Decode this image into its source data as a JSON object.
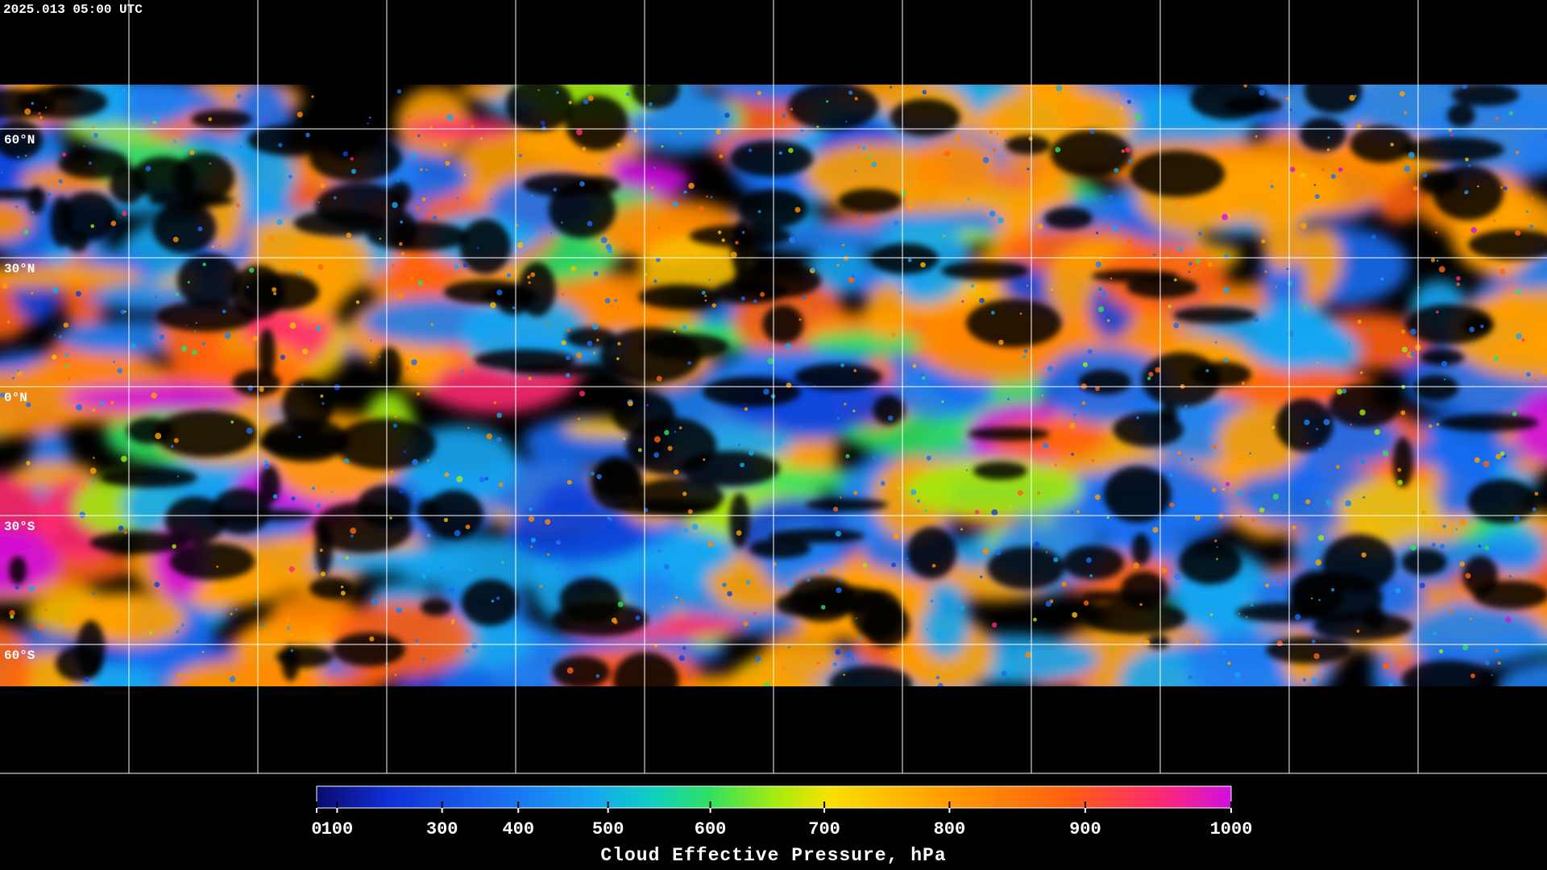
{
  "header": {
    "timestamp": "2025.013 05:00 UTC"
  },
  "map": {
    "lat_labels": [
      "60°N",
      "30°N",
      "0°N",
      "30°S",
      "60°S"
    ]
  },
  "colorbar": {
    "label": "Cloud Effective Pressure, hPa",
    "lim": [
      0,
      1000
    ],
    "ticks": [
      0,
      100,
      300,
      400,
      500,
      600,
      700,
      800,
      900,
      1000
    ]
  }
}
